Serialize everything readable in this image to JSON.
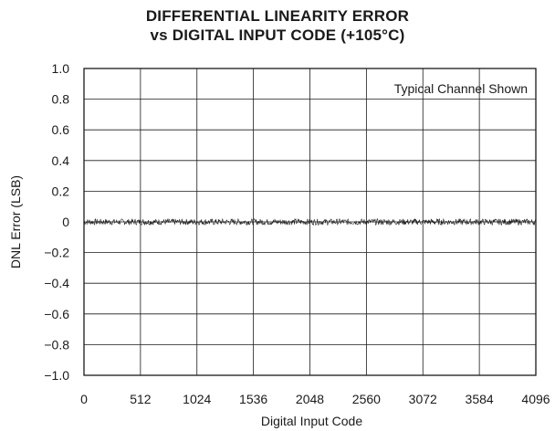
{
  "chart_data": {
    "type": "line",
    "title": "DIFFERENTIAL LINEARITY ERROR",
    "subtitle": "vs DIGITAL INPUT CODE (+105°C)",
    "xlabel": "Digital Input Code",
    "ylabel": "DNL Error (LSB)",
    "xlim": [
      0,
      4096
    ],
    "ylim": [
      -1.0,
      1.0
    ],
    "x_ticks": [
      0,
      512,
      1024,
      1536,
      2048,
      2560,
      3072,
      3584,
      4096
    ],
    "x_tick_labels": [
      "0",
      "512",
      "1024",
      "1536",
      "2048",
      "2560",
      "3072",
      "3584",
      "4096"
    ],
    "y_ticks": [
      1.0,
      0.8,
      0.6,
      0.4,
      0.2,
      0,
      -0.2,
      -0.4,
      -0.6,
      -0.8,
      -1.0
    ],
    "y_tick_labels": [
      "1.0",
      "0.8",
      "0.6",
      "0.4",
      "0.2",
      "0",
      "−0.2",
      "−0.4",
      "−0.6",
      "−0.8",
      "−1.0"
    ],
    "grid": true,
    "annotation": "Typical Channel Shown",
    "series": [
      {
        "approx_amplitude": 0.02,
        "center": 0,
        "x_range": [
          0,
          4096
        ]
      }
    ]
  },
  "colors": {
    "line": "#1a1a1a",
    "grid": "#1a1a1a",
    "background": "#ffffff"
  }
}
